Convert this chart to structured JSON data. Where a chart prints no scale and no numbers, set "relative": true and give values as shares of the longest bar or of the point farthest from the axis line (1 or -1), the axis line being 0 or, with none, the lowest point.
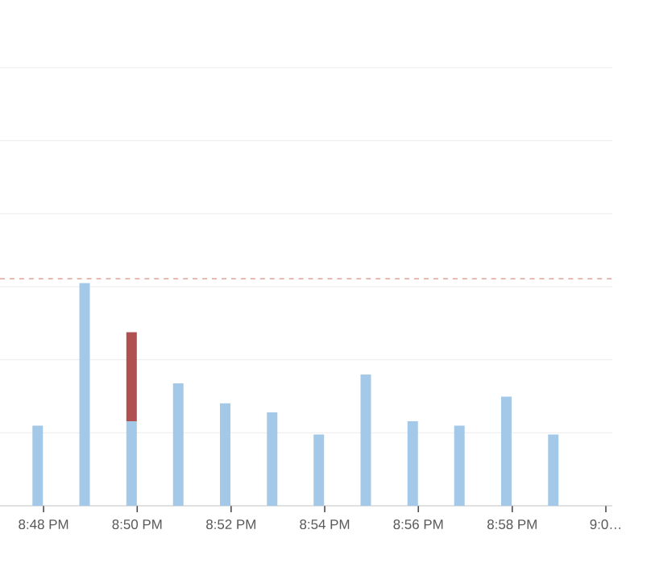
{
  "chart_data": {
    "type": "bar",
    "relative": true,
    "stacked": true,
    "x": [
      20.7979,
      20.8146,
      20.8313,
      20.8479,
      20.8646,
      20.8813,
      20.8979,
      20.9146,
      20.9313,
      20.9479,
      20.9646,
      20.9813
    ],
    "series": [
      {
        "color": "#a4c8e8",
        "values": [
          0.36,
          1.0,
          0.38,
          0.55,
          0.46,
          0.42,
          0.32,
          0.59,
          0.38,
          0.36,
          0.49,
          0.32
        ]
      },
      {
        "color": "#b05050",
        "values": [
          null,
          null,
          0.4,
          null,
          null,
          null,
          null,
          null,
          null,
          null,
          null,
          null
        ]
      }
    ],
    "xlim": [
      20.7845,
      21.0023
    ],
    "xticks": [
      {
        "value": 20.8,
        "label": "8:48 PM"
      },
      {
        "value": 20.8333,
        "label": "8:50 PM"
      },
      {
        "value": 20.8667,
        "label": "8:52 PM"
      },
      {
        "value": 20.9,
        "label": "8:54 PM"
      },
      {
        "value": 20.9333,
        "label": "8:56 PM"
      },
      {
        "value": 20.9667,
        "label": "8:58 PM"
      },
      {
        "value": 21.0,
        "label": "9:0…"
      }
    ],
    "tick_labels": "x",
    "ref_lines": [
      {
        "axis": "y",
        "value": 0.328,
        "color": "#e6e6e6",
        "line_style": "solid"
      },
      {
        "axis": "y",
        "value": 0.656,
        "color": "#e6e6e6",
        "line_style": "solid"
      },
      {
        "axis": "y",
        "value": 0.984,
        "color": "#e6e6e6",
        "line_style": "solid"
      },
      {
        "axis": "y",
        "value": 1.312,
        "color": "#e6e6e6",
        "line_style": "solid"
      },
      {
        "axis": "y",
        "value": 1.64,
        "color": "#e6e6e6",
        "line_style": "solid"
      },
      {
        "axis": "y",
        "value": 1.968,
        "color": "#e6e6e6",
        "line_style": "solid"
      },
      {
        "axis": "y",
        "value": 1.02,
        "color": "#c0503c",
        "line_style": "dashed"
      }
    ]
  }
}
